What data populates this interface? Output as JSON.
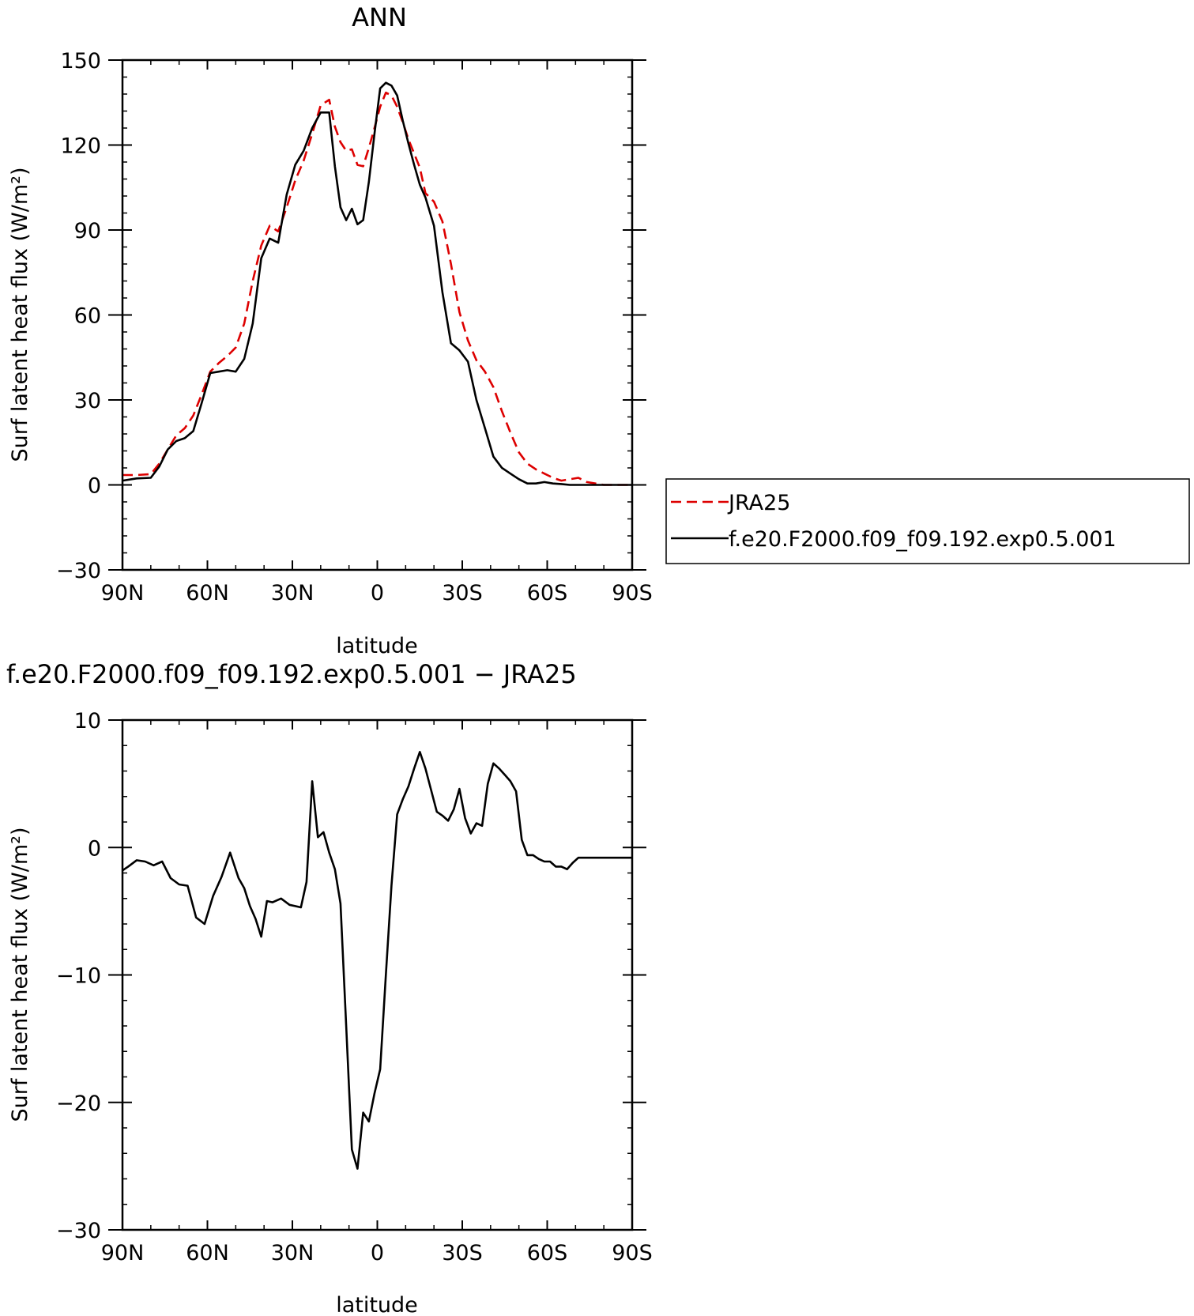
{
  "chart_data": [
    {
      "type": "line",
      "title": "ANN",
      "xlabel": "latitude",
      "ylabel": "Surf latent heat flux (W/m²)",
      "ylim": [
        -30,
        150
      ],
      "xlim": [
        90,
        -90
      ],
      "grid": false,
      "x_ticks": [
        90,
        60,
        30,
        0,
        -30,
        -60,
        -90
      ],
      "x_tick_labels": [
        "90N",
        "60N",
        "30N",
        "0",
        "30S",
        "60S",
        "90S"
      ],
      "y_ticks": [
        -30,
        0,
        30,
        60,
        90,
        120,
        150
      ],
      "y_tick_labels": [
        "−30",
        "0",
        "30",
        "60",
        "90",
        "120",
        "150"
      ],
      "legend": {
        "placement": "outside-right"
      },
      "series": [
        {
          "name": "JRA25",
          "color": "#dd0000",
          "dash": "dashed",
          "x": [
            90,
            85,
            80,
            77,
            74,
            71,
            68,
            65,
            62,
            59,
            56,
            53,
            50,
            47,
            44,
            41,
            38,
            35,
            32,
            29,
            26,
            23,
            20,
            17,
            15,
            13,
            11,
            9,
            7,
            5,
            3,
            1,
            -1,
            -3,
            -5,
            -7,
            -9,
            -11,
            -13,
            -15,
            -17,
            -20,
            -23,
            -26,
            -29,
            -32,
            -35,
            -38,
            -41,
            -44,
            -47,
            -50,
            -53,
            -56,
            -59,
            -62,
            -65,
            -68,
            -71,
            -74,
            -77,
            -80,
            -83,
            -86,
            -88,
            -90
          ],
          "values": [
            3.5,
            3.5,
            3.8,
            7.5,
            12.5,
            17.5,
            20.0,
            24.5,
            32.0,
            40.0,
            43.0,
            45.5,
            48.5,
            57.0,
            72.0,
            84.5,
            91.5,
            89.5,
            98.0,
            107.5,
            114.5,
            124.0,
            134.0,
            136.0,
            126.5,
            121.0,
            118.0,
            118.5,
            113.0,
            112.5,
            119.0,
            126.0,
            133.5,
            138.5,
            137.5,
            133.5,
            128.0,
            122.0,
            117.0,
            112.0,
            103.0,
            100.0,
            93.0,
            78.0,
            61.0,
            51.0,
            44.0,
            40.0,
            34.5,
            26.0,
            18.5,
            11.5,
            7.5,
            5.5,
            4.0,
            2.5,
            1.5,
            2.0,
            2.5,
            1.0,
            0.5,
            0.0,
            0.0,
            0.0,
            0.0,
            0.0
          ]
        },
        {
          "name": "f.e20.F2000.f09_f09.192.exp0.5.001",
          "color": "#000000",
          "dash": "solid",
          "x": [
            90,
            85,
            80,
            77,
            74,
            71,
            68,
            65,
            62,
            59,
            56,
            53,
            50,
            47,
            44,
            41,
            38,
            35,
            32,
            29,
            26,
            23,
            20,
            17,
            15,
            13,
            11,
            9,
            7,
            5,
            3,
            1,
            -1,
            -3,
            -5,
            -7,
            -9,
            -11,
            -13,
            -15,
            -17,
            -20,
            -23,
            -26,
            -29,
            -32,
            -35,
            -38,
            -41,
            -44,
            -47,
            -50,
            -53,
            -56,
            -59,
            -62,
            -65,
            -68,
            -71,
            -74,
            -77,
            -80,
            -83,
            -86,
            -88,
            -90
          ],
          "values": [
            1.5,
            2.3,
            2.5,
            6.5,
            12.5,
            15.5,
            16.5,
            19.0,
            29.0,
            39.5,
            40.0,
            40.5,
            40.0,
            44.5,
            57.0,
            80.0,
            87.0,
            85.5,
            102.5,
            113.0,
            118.0,
            126.0,
            131.5,
            131.5,
            112.5,
            98.0,
            93.5,
            97.5,
            92.0,
            93.5,
            107.0,
            124.0,
            140.0,
            142.0,
            141.0,
            137.5,
            128.5,
            120.5,
            113.0,
            106.0,
            101.5,
            91.5,
            68.0,
            50.0,
            47.5,
            43.5,
            30.0,
            20.0,
            10.0,
            6.0,
            4.0,
            2.0,
            0.5,
            0.5,
            1.0,
            0.5,
            0.3,
            0.0,
            0.0,
            0.0,
            0.0,
            0.0,
            0.0,
            0.0,
            0.0,
            0.0
          ]
        }
      ]
    },
    {
      "type": "line",
      "title": "f.e20.F2000.f09_f09.192.exp0.5.001 − JRA25",
      "xlabel": "latitude",
      "ylabel": "Surf latent heat flux (W/m²)",
      "ylim": [
        -30,
        10
      ],
      "xlim": [
        90,
        -90
      ],
      "grid": false,
      "x_ticks": [
        90,
        60,
        30,
        0,
        -30,
        -60,
        -90
      ],
      "x_tick_labels": [
        "90N",
        "60N",
        "30N",
        "0",
        "30S",
        "60S",
        "90S"
      ],
      "y_ticks": [
        -30,
        -20,
        -10,
        0,
        10
      ],
      "y_tick_labels": [
        "−30",
        "−20",
        "−10",
        "0",
        "10"
      ],
      "series": [
        {
          "color": "#000000",
          "dash": "solid",
          "x": [
            90,
            88,
            85,
            82,
            79,
            76,
            73,
            70,
            67,
            64,
            61,
            58,
            55,
            52,
            49,
            47,
            45,
            43,
            41,
            39,
            37,
            34,
            31,
            29,
            27,
            25,
            23,
            21,
            19,
            17,
            15,
            13,
            11,
            9,
            7,
            5,
            3,
            1,
            -1,
            -3,
            -5,
            -7,
            -9,
            -11,
            -13,
            -15,
            -17,
            -19,
            -21,
            -23,
            -25,
            -27,
            -29,
            -31,
            -33,
            -35,
            -37,
            -39,
            -41,
            -43,
            -45,
            -47,
            -49,
            -51,
            -53,
            -55,
            -57,
            -59,
            -61,
            -63,
            -65,
            -67,
            -69,
            -71,
            -74,
            -77,
            -80,
            -83,
            -86,
            -88,
            -90
          ],
          "values": [
            -1.8,
            -1.5,
            -1.0,
            -1.1,
            -1.4,
            -1.1,
            -2.4,
            -2.9,
            -3.0,
            -5.5,
            -6.0,
            -3.8,
            -2.3,
            -0.4,
            -2.4,
            -3.2,
            -4.6,
            -5.6,
            -7.0,
            -4.2,
            -4.3,
            -4.0,
            -4.5,
            -4.6,
            -4.7,
            -2.7,
            5.2,
            0.8,
            1.2,
            -0.4,
            -1.7,
            -4.4,
            -14.0,
            -23.7,
            -25.2,
            -20.8,
            -21.5,
            -19.3,
            -17.4,
            -10.0,
            -3.0,
            2.6,
            3.8,
            4.8,
            6.2,
            7.5,
            6.2,
            4.5,
            2.8,
            2.5,
            2.1,
            3.0,
            4.6,
            2.3,
            1.1,
            1.9,
            1.7,
            5.0,
            6.6,
            6.2,
            5.7,
            5.2,
            4.4,
            0.6,
            -0.6,
            -0.6,
            -0.9,
            -1.1,
            -1.1,
            -1.5,
            -1.5,
            -1.7,
            -1.2,
            -0.8,
            -0.8,
            -0.8,
            -0.8,
            -0.8,
            -0.8,
            -0.8,
            -0.8
          ]
        }
      ]
    }
  ]
}
